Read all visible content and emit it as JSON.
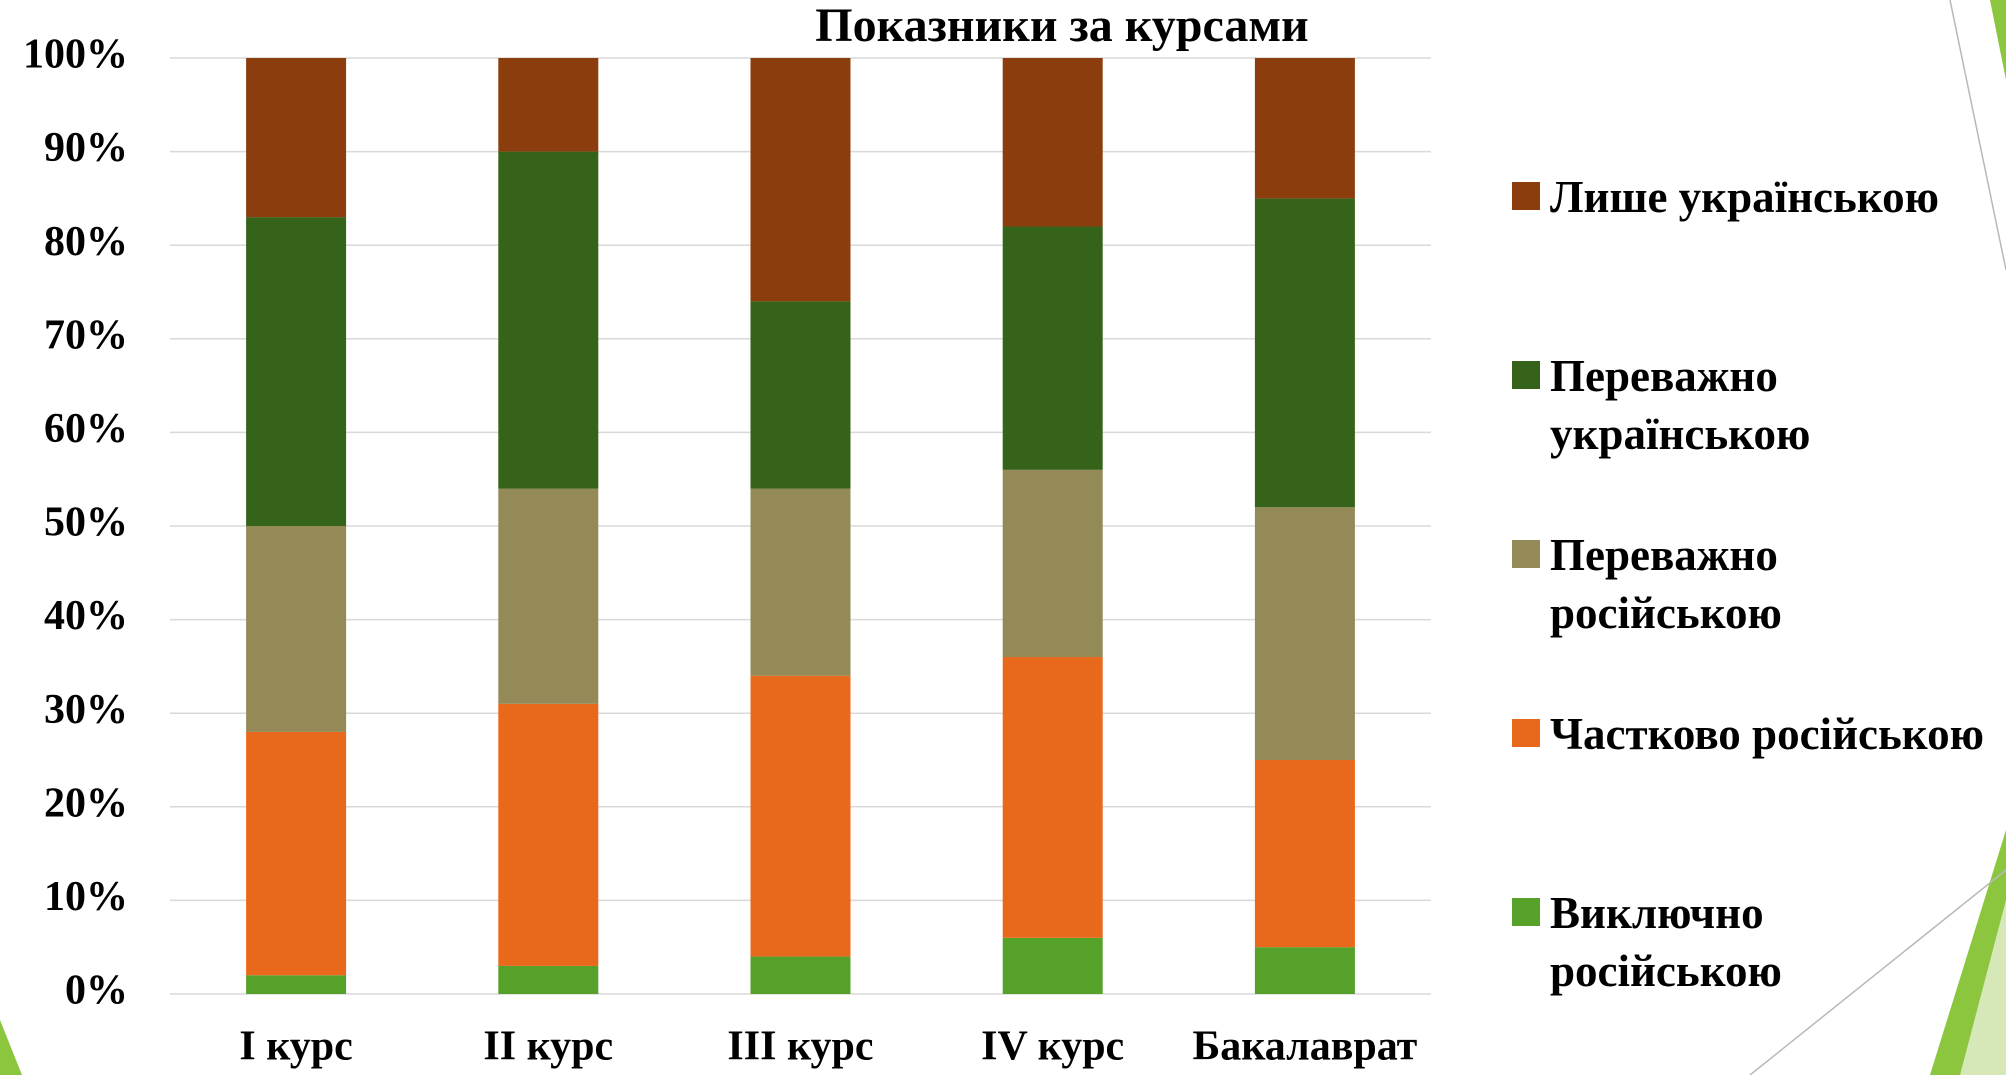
{
  "chart_data": {
    "type": "stacked_bar",
    "title": "Показники за курсами",
    "categories": [
      "I курс",
      "II курс",
      "III курс",
      "IV курс",
      "Бакалаврат"
    ],
    "series": [
      {
        "name": "Виключно російською",
        "color": "#55a12a",
        "values": [
          2,
          3,
          4,
          6,
          5
        ]
      },
      {
        "name": "Частково російською",
        "color": "#e8681c",
        "values": [
          26,
          28,
          30,
          30,
          20
        ]
      },
      {
        "name": "Переважно російською",
        "color": "#938a58",
        "values": [
          22,
          23,
          20,
          20,
          27
        ]
      },
      {
        "name": "Переважно українською",
        "color": "#35631a",
        "values": [
          33,
          36,
          20,
          26,
          33
        ]
      },
      {
        "name": "Лише українською",
        "color": "#8c3d0e",
        "values": [
          17,
          10,
          26,
          18,
          15
        ]
      }
    ],
    "ylim": [
      0,
      100
    ],
    "yticks": [
      {
        "value": 0,
        "label": "0%"
      },
      {
        "value": 10,
        "label": "10%"
      },
      {
        "value": 20,
        "label": "20%"
      },
      {
        "value": 30,
        "label": "30%"
      },
      {
        "value": 40,
        "label": "40%"
      },
      {
        "value": 50,
        "label": "50%"
      },
      {
        "value": 60,
        "label": "60%"
      },
      {
        "value": 70,
        "label": "70%"
      },
      {
        "value": 80,
        "label": "80%"
      },
      {
        "value": 90,
        "label": "90%"
      },
      {
        "value": 100,
        "label": "100%"
      }
    ],
    "grid": true,
    "legend": "right"
  }
}
